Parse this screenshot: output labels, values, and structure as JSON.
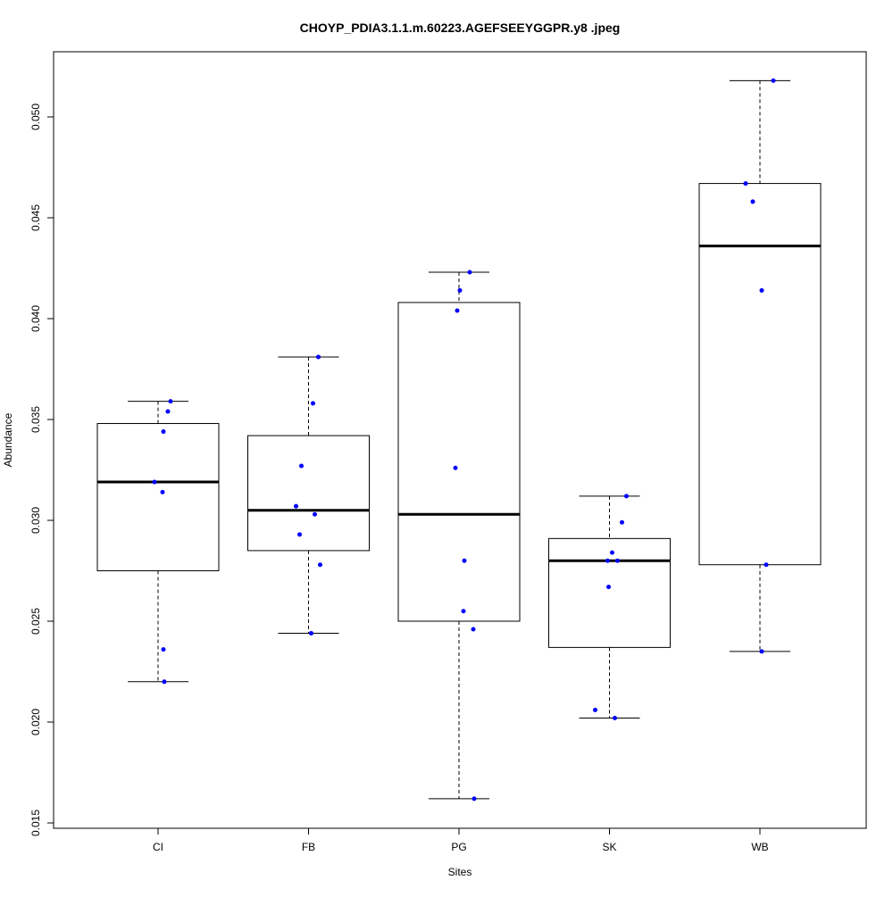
{
  "chart_data": {
    "type": "box",
    "title": "CHOYP_PDIA3.1.1.m.60223.AGEFSEEYGGPR.y8 .jpeg",
    "xlabel": "Sites",
    "ylabel": "Abundance",
    "ylim": [
      0.0145,
      0.0527
    ],
    "yticks": [
      "0.015",
      "0.020",
      "0.025",
      "0.030",
      "0.035",
      "0.040",
      "0.045",
      "0.050"
    ],
    "grid": false,
    "point_color": "#0000ff",
    "categories": [
      "CI",
      "FB",
      "PG",
      "SK",
      "WB"
    ],
    "boxes": [
      {
        "name": "CI",
        "lower": 0.022,
        "q1": 0.0275,
        "median": 0.0319,
        "q3": 0.0348,
        "upper": 0.0359,
        "points": [
          0.0359,
          0.0354,
          0.0344,
          0.0319,
          0.0314,
          0.0236,
          0.022
        ]
      },
      {
        "name": "FB",
        "lower": 0.0244,
        "q1": 0.0285,
        "median": 0.0305,
        "q3": 0.0342,
        "upper": 0.0381,
        "points": [
          0.0381,
          0.0358,
          0.0327,
          0.0307,
          0.0303,
          0.0293,
          0.0278,
          0.0244
        ]
      },
      {
        "name": "PG",
        "lower": 0.0162,
        "q1": 0.025,
        "median": 0.0303,
        "q3": 0.0408,
        "upper": 0.0423,
        "points": [
          0.0423,
          0.0414,
          0.0404,
          0.0326,
          0.028,
          0.0255,
          0.0246,
          0.0162
        ]
      },
      {
        "name": "SK",
        "lower": 0.0202,
        "q1": 0.0237,
        "median": 0.028,
        "q3": 0.0291,
        "upper": 0.0312,
        "points": [
          0.0312,
          0.0299,
          0.0284,
          0.028,
          0.028,
          0.0267,
          0.0206,
          0.0202
        ]
      },
      {
        "name": "WB",
        "lower": 0.0235,
        "q1": 0.0278,
        "median": 0.0436,
        "q3": 0.0467,
        "upper": 0.0518,
        "points": [
          0.0518,
          0.0467,
          0.0458,
          0.0414,
          0.0278,
          0.0235
        ]
      }
    ]
  }
}
